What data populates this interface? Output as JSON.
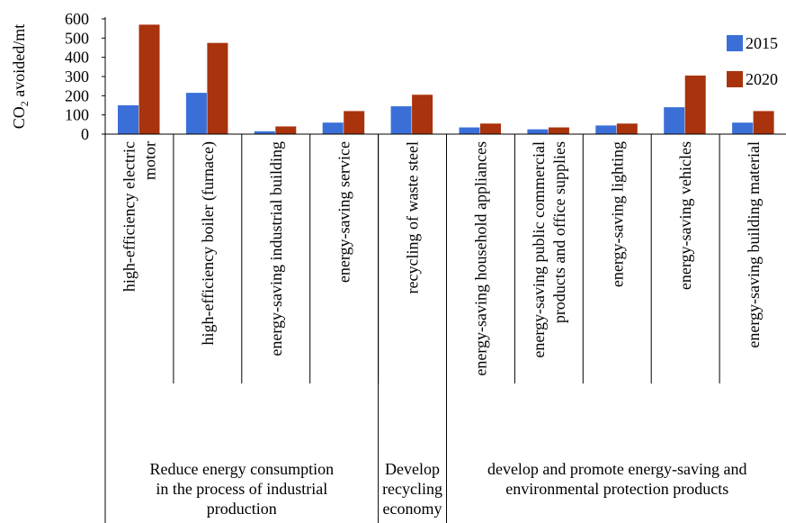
{
  "chart_data": {
    "type": "bar",
    "ylabel": "CO2 avoided/mt",
    "ylim": [
      0,
      600
    ],
    "yticks": [
      0,
      100,
      200,
      300,
      400,
      500,
      600
    ],
    "legend_position": "right",
    "categories": [
      [
        "high-efficiency electric",
        "motor"
      ],
      [
        "high-efficiency boiler (furnace)"
      ],
      [
        "energy-saving industrial building"
      ],
      [
        "energy-saving service"
      ],
      [
        "recycling of waste steel"
      ],
      [
        "energy-saving household appliances"
      ],
      [
        "energy-saving public commercial",
        "products and office supplies"
      ],
      [
        "energy-saving lighting"
      ],
      [
        "energy-saving vehicles"
      ],
      [
        "energy-saving building material"
      ]
    ],
    "series": [
      {
        "name": "2015",
        "color": "#3a6fd8",
        "values": [
          150,
          215,
          15,
          60,
          145,
          35,
          25,
          45,
          140,
          60
        ]
      },
      {
        "name": "2020",
        "color": "#a8330c",
        "values": [
          570,
          475,
          40,
          120,
          205,
          55,
          35,
          55,
          305,
          120
        ]
      }
    ],
    "groups": [
      {
        "label": [
          "Reduce energy consumption",
          "in the process of industrial",
          "production"
        ],
        "from": 0,
        "to": 3
      },
      {
        "label": [
          "Develop",
          "recycling",
          "economy"
        ],
        "from": 4,
        "to": 4
      },
      {
        "label": [
          "develop and promote energy-saving and",
          "environmental protection products"
        ],
        "from": 5,
        "to": 9
      }
    ]
  }
}
